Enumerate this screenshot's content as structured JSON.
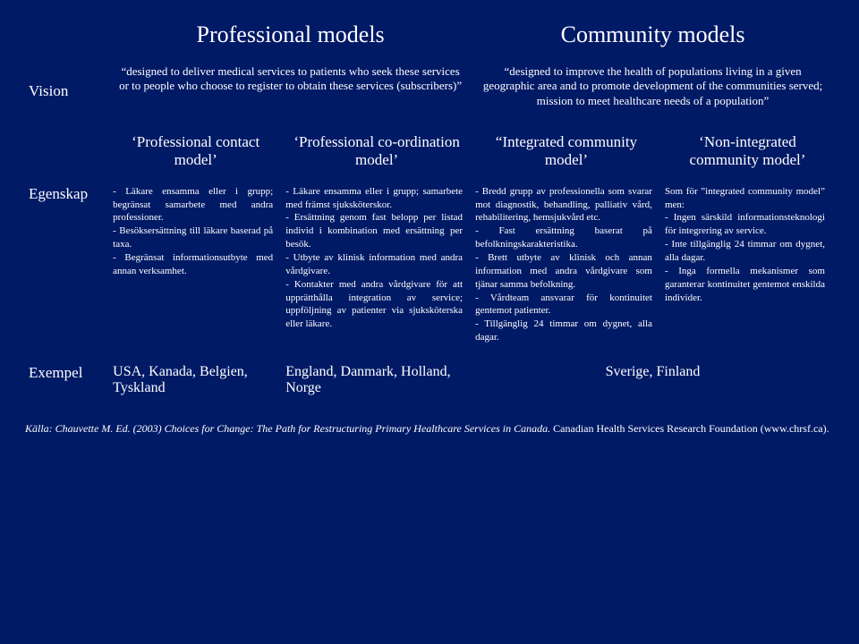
{
  "background_color": "#001a66",
  "text_color": "#ffffff",
  "labels": {
    "vision": "Vision",
    "egenskap": "Egenskap",
    "exempel": "Exempel"
  },
  "headers": {
    "professional": "Professional models",
    "community": "Community models"
  },
  "vision": {
    "professional": "“designed to deliver medical services to patients who seek these services or to people who choose to register to obtain these services (subscribers)”",
    "community": "“designed to improve the health of populations living in a given geographic area and to promote development of the communities served; mission to meet healthcare needs of a population”"
  },
  "submodels": {
    "m1": "‘Professional contact model’",
    "m2": "‘Professional co-ordination model’",
    "m3": "“Integrated community model’",
    "m4": "‘Non-integrated community model’"
  },
  "egenskap": {
    "m1": "- Läkare ensamma eller i grupp; begränsat samarbete med andra professioner.\n- Besöksersättning till läkare baserad på taxa.\n- Begränsat informationsutbyte med annan verksamhet.",
    "m2": "- Läkare ensamma eller i grupp; samarbete med främst sjuksköterskor.\n- Ersättning genom fast belopp per listad individ i kombination med ersättning per besök.\n- Utbyte av klinisk information med andra vårdgivare.\n- Kontakter med andra vårdgivare för att upprätthålla integration av service; uppföljning av patienter via sjuksköterska eller läkare.",
    "m3": "- Bredd grupp av professionella som svarar mot diagnostik, behandling, palliativ vård, rehabilitering, hemsjukvård etc.\n- Fast ersättning baserat på befolkningskarakteristika.\n- Brett utbyte av klinisk och annan information med andra vårdgivare som tjänar samma befolkning.\n- Vårdteam ansvarar för kontinuitet gentemot patienter.\n- Tillgänglig 24 timmar om dygnet, alla dagar.",
    "m4": "Som för ”integrated community model” men:\n- Ingen särskild informationsteknologi för integrering av service.\n- Inte tillgänglig 24 timmar om dygnet, alla dagar.\n- Inga formella mekanismer som garanterar kontinuitet gentemot enskilda individer."
  },
  "exempel": {
    "m1": "USA, Kanada, Belgien, Tyskland",
    "m2": "England, Danmark, Holland, Norge",
    "m34": "Sverige, Finland"
  },
  "source": {
    "prefix": "Källa:",
    "citation": "Chauvette M. Ed. (2003) Choices for Change: The Path for Restructuring Primary Healthcare Services in Canada.",
    "suffix": "Canadian Health Services Research Foundation (www.chrsf.ca)."
  }
}
